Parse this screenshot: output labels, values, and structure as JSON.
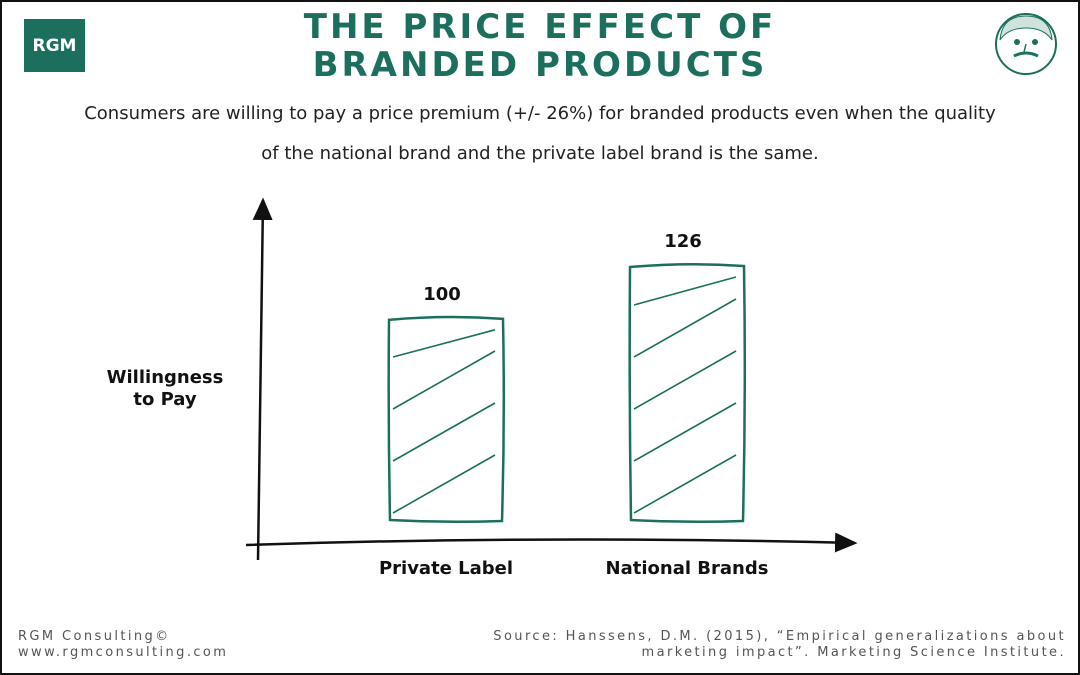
{
  "logo": "RGM",
  "chart_data": {
    "type": "bar",
    "title": "THE PRICE EFFECT OF BRANDED PRODUCTS",
    "subtitle": "Consumers are willing to pay a price premium (+/- 26%) for branded products even when the quality of the national brand and the private label brand is the same.",
    "y_label": "Willingness to Pay",
    "categories": [
      "Private Label",
      "National Brands"
    ],
    "values": [
      100,
      126
    ],
    "color": "#1b6f5c"
  },
  "footer": {
    "company": "RGM Consulting©",
    "website": "www.rgmconsulting.com",
    "source": "Source: Hanssens, D.M.  (2015), “Empirical generalizations about marketing impact”. Marketing Science Institute."
  }
}
